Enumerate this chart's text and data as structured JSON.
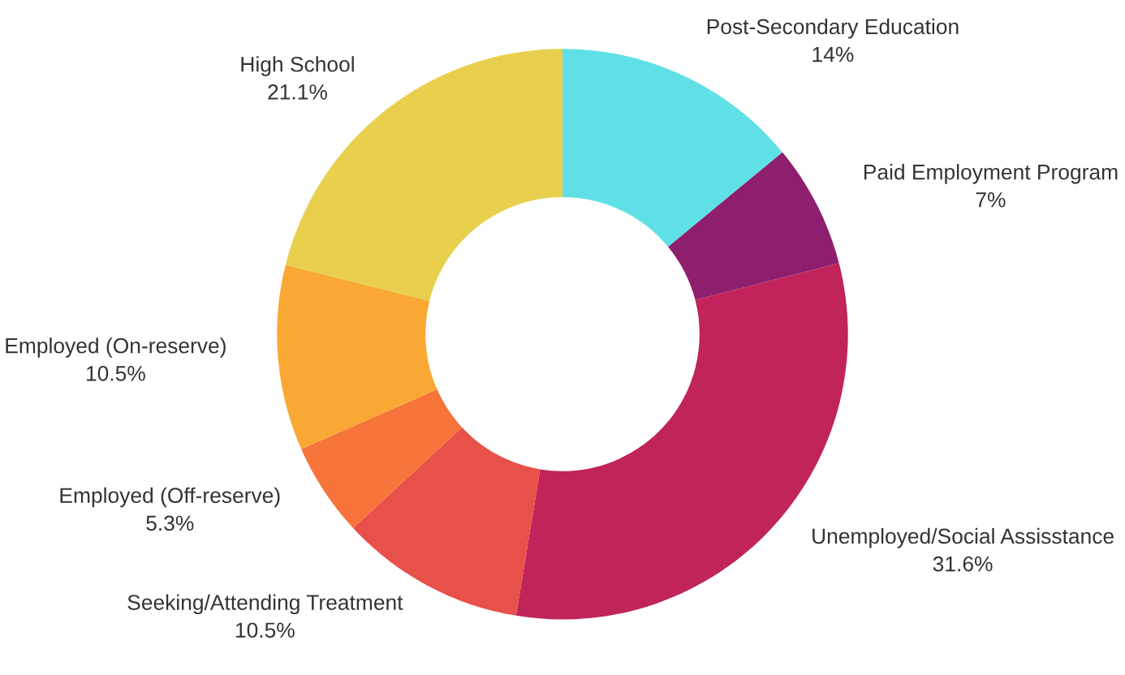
{
  "chart_data": {
    "type": "donut",
    "categories": [
      "Post-Secondary Education",
      "Paid Employment Program",
      "Unemployed/Social Assisstance",
      "Seeking/Attending Treatment",
      "Employed (Off-reserve)",
      "Employed (On-reserve)",
      "High School"
    ],
    "values": [
      14,
      7,
      31.6,
      10.5,
      5.3,
      10.5,
      21.1
    ],
    "value_labels": [
      "14%",
      "7%",
      "31.6%",
      "10.5%",
      "5.3%",
      "10.5%",
      "21.1%"
    ],
    "colors": [
      "#5fe0e6",
      "#8e1f6e",
      "#c0245a",
      "#e8504a",
      "#f7743a",
      "#f9a834",
      "#e8d04e"
    ],
    "legend": false
  }
}
